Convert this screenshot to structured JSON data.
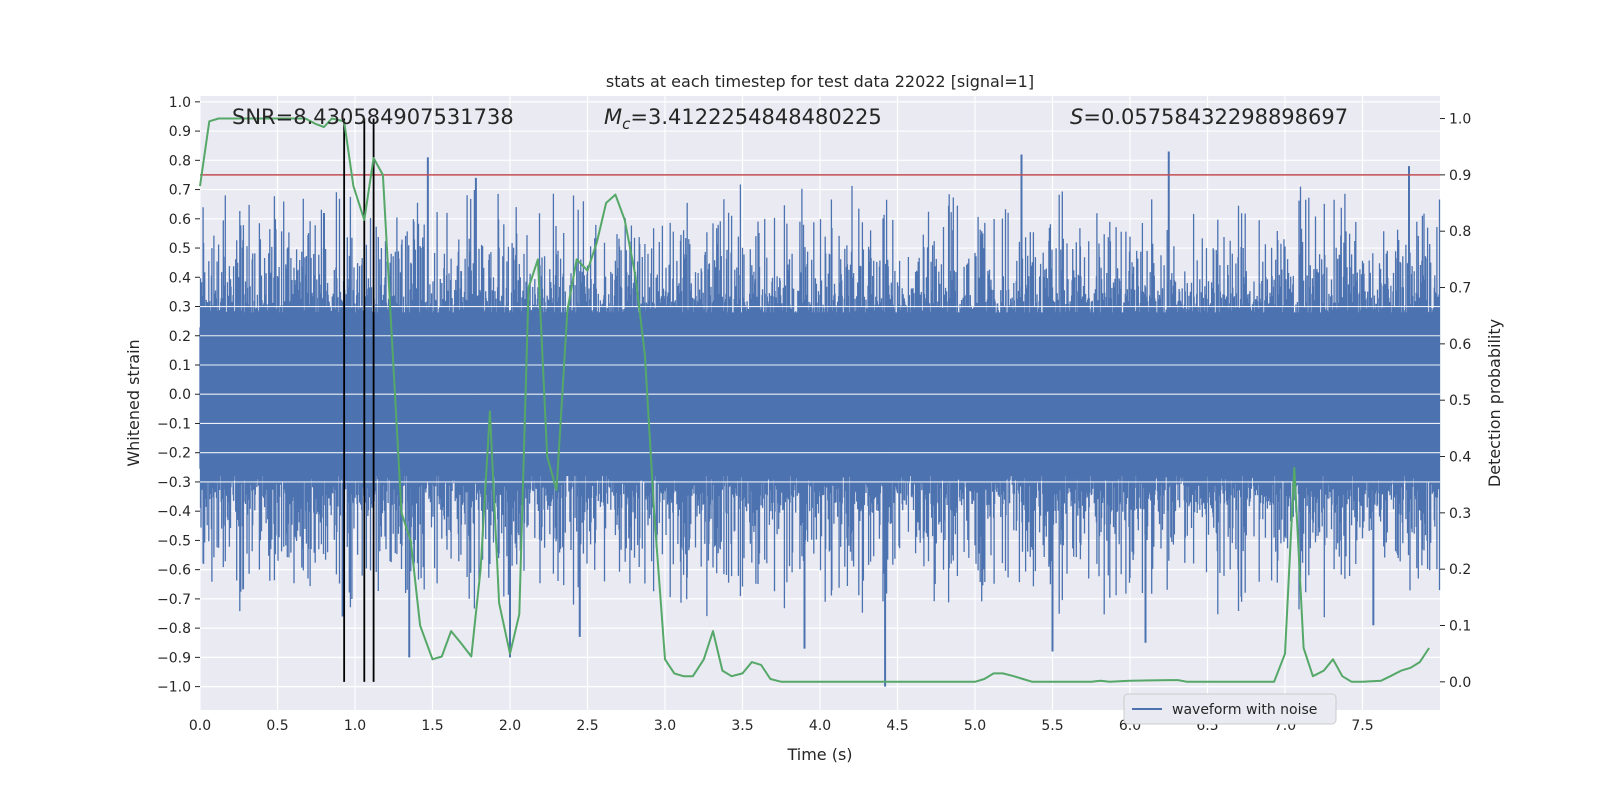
{
  "chart_data": {
    "type": "line",
    "title": "stats at each timestep for test data 22022 [signal=1]",
    "xlabel": "Time (s)",
    "ylabel_left": "Whitened strain",
    "ylabel_right": "Detection probability",
    "xlim": [
      0.0,
      8.0
    ],
    "ylim_left": [
      -1.08,
      1.02
    ],
    "ylim_right": [
      -0.05,
      1.04
    ],
    "x_ticks": [
      "0.0",
      "0.5",
      "1.0",
      "1.5",
      "2.0",
      "2.5",
      "3.0",
      "3.5",
      "4.0",
      "4.5",
      "5.0",
      "5.5",
      "6.0",
      "6.5",
      "7.0",
      "7.5"
    ],
    "x_tick_values": [
      0.0,
      0.5,
      1.0,
      1.5,
      2.0,
      2.5,
      3.0,
      3.5,
      4.0,
      4.5,
      5.0,
      5.5,
      6.0,
      6.5,
      7.0,
      7.5
    ],
    "y_left_ticks": [
      "1.0",
      "0.9",
      "0.8",
      "0.7",
      "0.6",
      "0.5",
      "0.4",
      "0.3",
      "0.2",
      "0.1",
      "0.0",
      "−0.1",
      "−0.2",
      "−0.3",
      "−0.4",
      "−0.5",
      "−0.6",
      "−0.7",
      "−0.8",
      "−0.9",
      "−1.0"
    ],
    "y_left_tick_values": [
      1.0,
      0.9,
      0.8,
      0.7,
      0.6,
      0.5,
      0.4,
      0.3,
      0.2,
      0.1,
      0.0,
      -0.1,
      -0.2,
      -0.3,
      -0.4,
      -0.5,
      -0.6,
      -0.7,
      -0.8,
      -0.9,
      -1.0
    ],
    "y_right_ticks": [
      "1.0",
      "0.9",
      "0.8",
      "0.7",
      "0.6",
      "0.5",
      "0.4",
      "0.3",
      "0.2",
      "0.1",
      "0.0"
    ],
    "y_right_tick_values": [
      1.0,
      0.9,
      0.8,
      0.7,
      0.6,
      0.5,
      0.4,
      0.3,
      0.2,
      0.1,
      0.0
    ],
    "annotations": {
      "snr": "SNR=8.430584907531738",
      "mc_symbol": "M",
      "mc_sub": "c",
      "mc_value": "=3.4122254848480225",
      "s_symbol": "S",
      "s_value": "=0.05758432298898697"
    },
    "legend": {
      "label": "waveform with noise",
      "placement": "lower-right"
    },
    "threshold": {
      "value": 0.9,
      "axis": "right",
      "color": "#c44e52"
    },
    "vlines": [
      0.93,
      1.06,
      1.12
    ],
    "waveform": {
      "name": "waveform with noise",
      "color": "#4c72b0",
      "samples": 2400,
      "core_amplitude": 0.28,
      "typical_peak": 0.55,
      "spikes": [
        {
          "x": 0.8,
          "y": 0.62
        },
        {
          "x": 0.92,
          "y": -0.76
        },
        {
          "x": 1.47,
          "y": 0.81
        },
        {
          "x": 1.35,
          "y": -0.9
        },
        {
          "x": 1.78,
          "y": 0.74
        },
        {
          "x": 2.0,
          "y": -0.9
        },
        {
          "x": 2.45,
          "y": -0.83
        },
        {
          "x": 3.9,
          "y": -0.87
        },
        {
          "x": 4.42,
          "y": -1.0
        },
        {
          "x": 5.3,
          "y": 0.82
        },
        {
          "x": 5.5,
          "y": -0.88
        },
        {
          "x": 6.1,
          "y": -0.85
        },
        {
          "x": 6.25,
          "y": 0.83
        },
        {
          "x": 7.57,
          "y": -0.79
        },
        {
          "x": 7.8,
          "y": 0.78
        }
      ]
    },
    "series": [
      {
        "name": "detection probability",
        "axis": "right",
        "color": "#55a868",
        "x": [
          0.0,
          0.06,
          0.12,
          0.2,
          0.3,
          0.4,
          0.5,
          0.6,
          0.68,
          0.75,
          0.8,
          0.85,
          0.93,
          0.99,
          1.06,
          1.12,
          1.18,
          1.24,
          1.3,
          1.36,
          1.42,
          1.5,
          1.56,
          1.62,
          1.68,
          1.75,
          1.81,
          1.87,
          1.93,
          2.0,
          2.06,
          2.12,
          2.18,
          2.24,
          2.3,
          2.37,
          2.43,
          2.5,
          2.56,
          2.62,
          2.68,
          2.74,
          2.81,
          2.87,
          2.93,
          3.0,
          3.06,
          3.12,
          3.18,
          3.25,
          3.31,
          3.37,
          3.43,
          3.5,
          3.56,
          3.62,
          3.68,
          3.75,
          3.81,
          3.87,
          4.0,
          4.5,
          5.0,
          5.06,
          5.12,
          5.18,
          5.25,
          5.31,
          5.37,
          5.5,
          5.75,
          5.81,
          5.87,
          6.0,
          6.25,
          6.31,
          6.37,
          6.5,
          6.75,
          6.87,
          6.93,
          7.0,
          7.06,
          7.12,
          7.18,
          7.25,
          7.31,
          7.37,
          7.43,
          7.5,
          7.62,
          7.68,
          7.75,
          7.81,
          7.87,
          7.93
        ],
        "y": [
          0.88,
          0.995,
          1.0,
          1.0,
          1.0,
          1.0,
          1.0,
          1.0,
          1.0,
          0.99,
          0.985,
          1.0,
          0.995,
          0.88,
          0.82,
          0.93,
          0.9,
          0.6,
          0.3,
          0.25,
          0.1,
          0.04,
          0.045,
          0.09,
          0.07,
          0.045,
          0.2,
          0.48,
          0.14,
          0.05,
          0.12,
          0.7,
          0.75,
          0.4,
          0.34,
          0.66,
          0.75,
          0.73,
          0.78,
          0.85,
          0.865,
          0.82,
          0.72,
          0.58,
          0.3,
          0.04,
          0.015,
          0.01,
          0.01,
          0.04,
          0.09,
          0.02,
          0.01,
          0.015,
          0.035,
          0.03,
          0.005,
          0.0,
          0.0,
          0.0,
          0.0,
          0.0,
          0.0,
          0.005,
          0.015,
          0.015,
          0.01,
          0.005,
          0.0,
          0.0,
          0.0,
          0.002,
          0.0,
          0.002,
          0.003,
          0.003,
          0.0,
          0.0,
          0.0,
          0.0,
          0.0,
          0.05,
          0.38,
          0.06,
          0.01,
          0.02,
          0.04,
          0.01,
          0.0,
          0.0,
          0.002,
          0.01,
          0.02,
          0.025,
          0.035,
          0.06
        ]
      }
    ]
  }
}
